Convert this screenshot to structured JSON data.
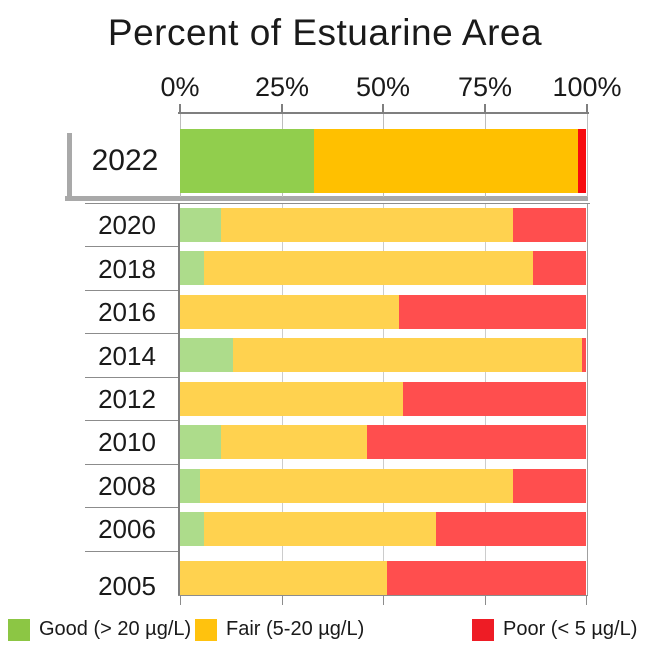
{
  "title": "Percent of Estuarine Area",
  "x_axis": {
    "ticks": [
      "0%",
      "25%",
      "50%",
      "75%",
      "100%"
    ]
  },
  "legend": {
    "items": [
      {
        "label": "Good (> 20 µg/L)",
        "color": "#8cc644"
      },
      {
        "label": "Fair (5-20 µg/L)",
        "color": "#ffc20e"
      },
      {
        "label": "Poor (< 5 µg/L)",
        "color": "#ee1c25"
      }
    ]
  },
  "palette": {
    "highlight": [
      "#91ce4d",
      "#ffc000",
      "#f70b0f"
    ],
    "muted": [
      "#addc8b",
      "#ffd24f",
      "#ff4e4e"
    ],
    "shadow": "#a9a9a9",
    "axis": "#7f7f7f",
    "gridline": "#cccccc"
  },
  "chart_data": {
    "type": "bar",
    "orientation": "horizontal",
    "stacked": true,
    "title": "Percent of Estuarine Area",
    "categories": [
      "2022",
      "2020",
      "2018",
      "2016",
      "2014",
      "2012",
      "2010",
      "2008",
      "2006",
      "2005"
    ],
    "series": [
      {
        "name": "Good (> 20 µg/L)",
        "values": [
          33,
          10,
          6,
          0,
          13,
          0,
          10,
          5,
          6,
          0
        ]
      },
      {
        "name": "Fair (5-20 µg/L)",
        "values": [
          65,
          72,
          81,
          54,
          86,
          55,
          36,
          77,
          57,
          51
        ]
      },
      {
        "name": "Poor (< 5 µg/L)",
        "values": [
          2,
          18,
          13,
          46,
          1,
          45,
          54,
          18,
          37,
          49
        ]
      }
    ],
    "xlim": [
      0,
      100
    ],
    "axis_position": "top",
    "grid": true,
    "legend_position": "bottom",
    "highlight_category": "2022"
  }
}
